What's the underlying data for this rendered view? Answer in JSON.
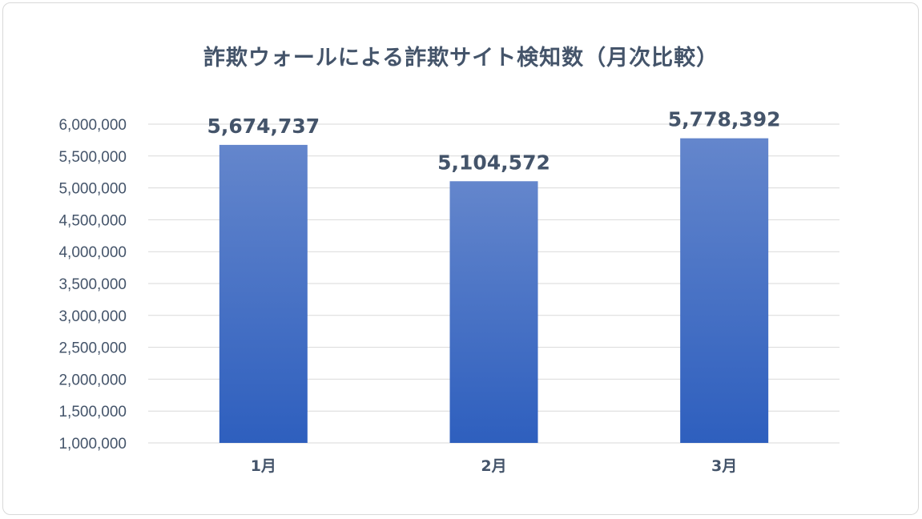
{
  "chart_data": {
    "type": "bar",
    "title": "詐欺ウォールによる詐欺サイト検知数（月次比較）",
    "xlabel": "",
    "ylabel": "",
    "categories": [
      "1月",
      "2月",
      "3月"
    ],
    "values": [
      5674737,
      5104572,
      5778392
    ],
    "data_labels": [
      "5,674,737",
      "5,104,572",
      "5,778,392"
    ],
    "ylim": [
      1000000,
      6000000
    ],
    "yticks": [
      1000000,
      1500000,
      2000000,
      2500000,
      3000000,
      3500000,
      4000000,
      4500000,
      5000000,
      5500000,
      6000000
    ],
    "ytick_labels": [
      "1,000,000",
      "1,500,000",
      "2,000,000",
      "2,500,000",
      "3,000,000",
      "3,500,000",
      "4,000,000",
      "4,500,000",
      "5,000,000",
      "5,500,000",
      "6,000,000"
    ],
    "grid": true,
    "legend": "none",
    "colors": {
      "bar_top": "#6486cc",
      "bar_bottom": "#2e5fbe",
      "grid": "#d9d9d9",
      "text": "#44546a"
    }
  }
}
